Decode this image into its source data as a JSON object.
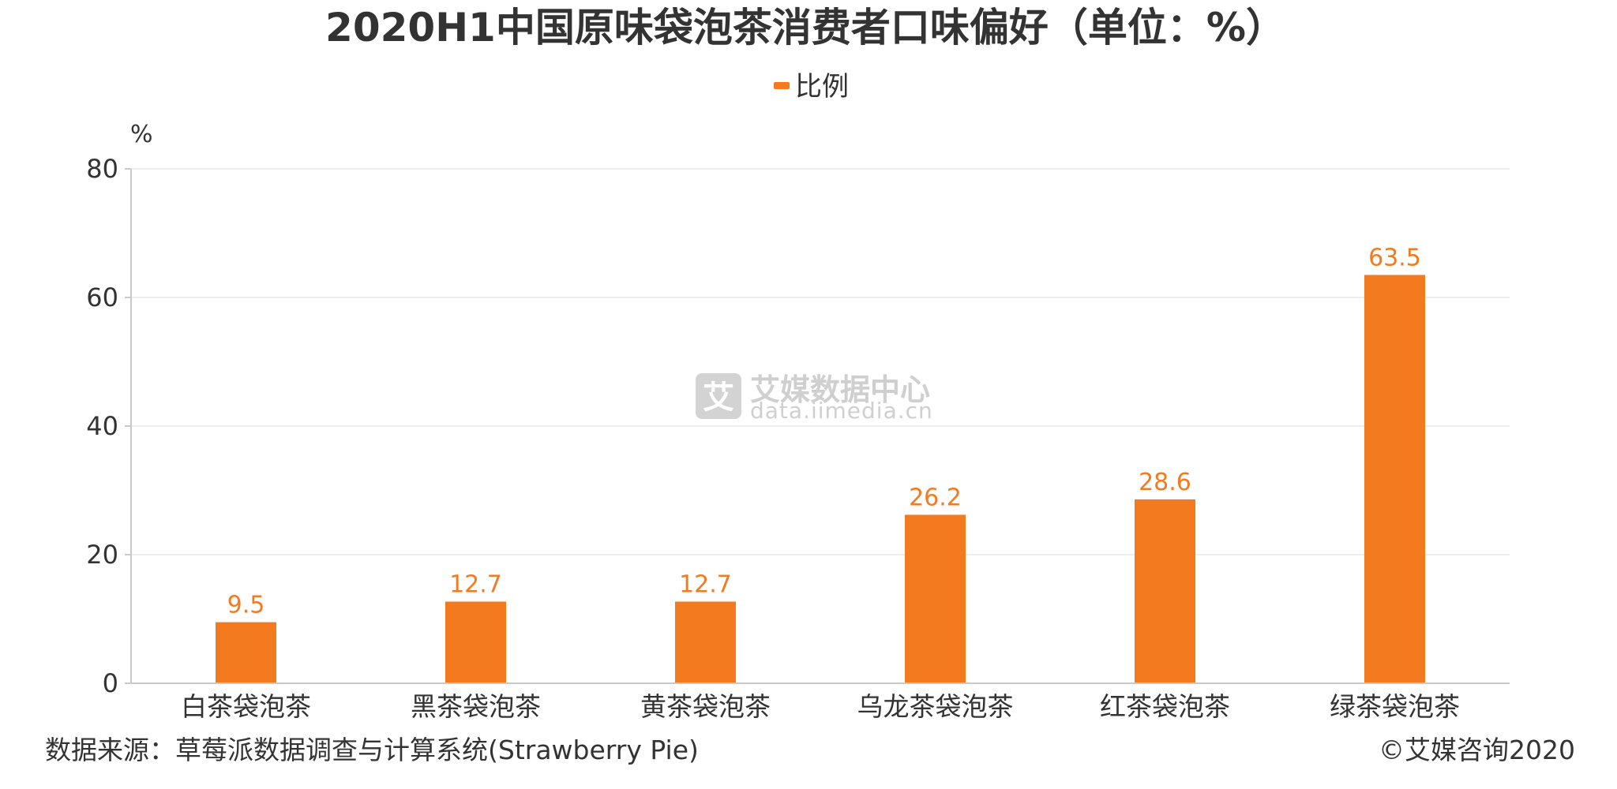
{
  "chart_data": {
    "type": "bar",
    "title": "2020H1中国原味袋泡茶消费者口味偏好（单位：%）",
    "ylabel": "%",
    "xlabel": "",
    "categories": [
      "白茶袋泡茶",
      "黑茶袋泡茶",
      "黄茶袋泡茶",
      "乌龙茶袋泡茶",
      "红茶袋泡茶",
      "绿茶袋泡茶"
    ],
    "series": [
      {
        "name": "比例",
        "values": [
          9.5,
          12.7,
          12.7,
          26.2,
          28.6,
          63.5
        ]
      }
    ],
    "ylim": [
      0,
      80
    ],
    "yticks": [
      "0",
      "20",
      "40",
      "60",
      "80"
    ],
    "grid": true,
    "legend": "top-center",
    "colors": {
      "bar": "#f47a20",
      "label": "#f47a20",
      "grid": "#e8e8e8",
      "axis": "#c9c9c9"
    }
  },
  "footer": {
    "source": "数据来源：草莓派数据调查与计算系统(Strawberry Pie)",
    "copyright": "©艾媒咨询2020"
  },
  "watermark": {
    "icon": "艾",
    "name": "艾媒数据中心",
    "url": "data.iimedia.cn"
  }
}
